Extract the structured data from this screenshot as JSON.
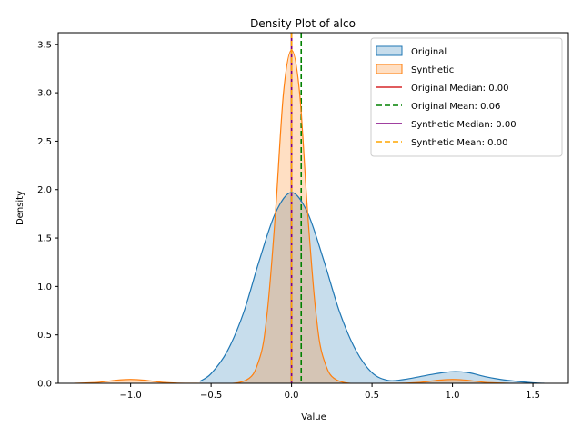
{
  "chart_data": {
    "type": "area",
    "title": "Density Plot of alco",
    "xlabel": "Value",
    "ylabel": "Density",
    "xlim": [
      -1.45,
      1.72
    ],
    "ylim": [
      0,
      3.62
    ],
    "xticks": [
      -1.0,
      -0.5,
      0.0,
      0.5,
      1.0,
      1.5
    ],
    "xtick_labels": [
      "−1.0",
      "−0.5",
      "0.0",
      "0.5",
      "1.0",
      "1.5"
    ],
    "yticks": [
      0.0,
      0.5,
      1.0,
      1.5,
      2.0,
      2.5,
      3.0,
      3.5
    ],
    "ytick_labels": [
      "0.0",
      "0.5",
      "1.0",
      "1.5",
      "2.0",
      "2.5",
      "3.0",
      "3.5"
    ],
    "grid": false,
    "legend_position": "top-right",
    "series": [
      {
        "name": "Original",
        "color": "#1f77b4",
        "x": [
          -0.57,
          -0.5,
          -0.4,
          -0.3,
          -0.2,
          -0.1,
          0.0,
          0.1,
          0.2,
          0.3,
          0.4,
          0.5,
          0.6,
          0.7,
          0.8,
          0.9,
          1.0,
          1.1,
          1.2,
          1.3,
          1.4,
          1.5,
          1.57
        ],
        "y": [
          0.02,
          0.1,
          0.33,
          0.72,
          1.27,
          1.76,
          1.97,
          1.76,
          1.27,
          0.73,
          0.34,
          0.11,
          0.03,
          0.04,
          0.07,
          0.1,
          0.12,
          0.11,
          0.07,
          0.04,
          0.02,
          0.005,
          0.0
        ]
      },
      {
        "name": "Synthetic",
        "color": "#ff7f0e",
        "x": [
          -1.35,
          -1.2,
          -1.1,
          -1.0,
          -0.9,
          -0.8,
          -0.6,
          -0.3,
          -0.2,
          -0.15,
          -0.1,
          -0.05,
          0.0,
          0.05,
          0.1,
          0.15,
          0.2,
          0.3,
          0.6,
          0.8,
          0.9,
          1.0,
          1.1,
          1.2,
          1.35
        ],
        "y": [
          0.0,
          0.01,
          0.03,
          0.04,
          0.03,
          0.01,
          0.0,
          0.02,
          0.25,
          0.75,
          1.76,
          3.0,
          3.44,
          3.0,
          1.76,
          0.75,
          0.25,
          0.02,
          0.0,
          0.01,
          0.03,
          0.04,
          0.03,
          0.01,
          0.0
        ]
      }
    ],
    "reference_lines": [
      {
        "name": "Original Median: 0.00",
        "value": 0.0,
        "color": "#d62728",
        "style": "solid"
      },
      {
        "name": "Original Mean: 0.06",
        "value": 0.06,
        "color": "#008000",
        "style": "dashed"
      },
      {
        "name": "Synthetic Median: 0.00",
        "value": 0.0,
        "color": "#800080",
        "style": "solid"
      },
      {
        "name": "Synthetic Mean: 0.00",
        "value": 0.0,
        "color": "#ffa500",
        "style": "dashed"
      }
    ]
  }
}
